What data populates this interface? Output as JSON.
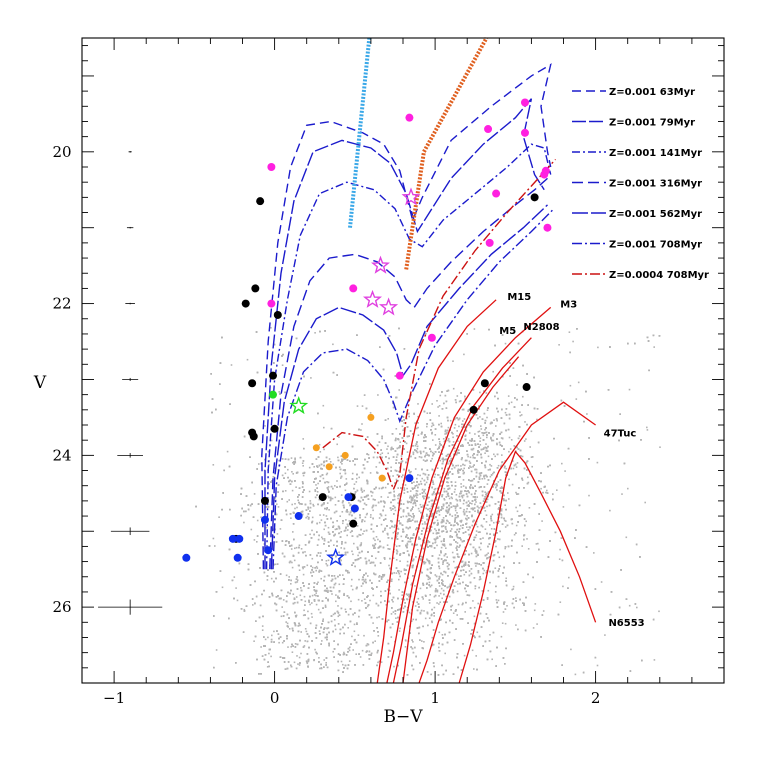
{
  "chart_data": {
    "type": "scatter",
    "xlabel": "B−V",
    "ylabel": "V",
    "xlim": [
      -1.2,
      2.8
    ],
    "ylim": [
      27.0,
      18.5
    ],
    "xticks": [
      -1,
      0,
      1,
      2
    ],
    "xtick_labels": [
      "−1",
      "0",
      "1",
      "2"
    ],
    "yticks": [
      20,
      22,
      24,
      26
    ],
    "ytick_labels": [
      "20",
      "22",
      "24",
      "26"
    ],
    "background_field": {
      "color": "#b4b4b4",
      "description_points": 9000
    },
    "colors": {
      "isochrone_blue": "#1b1bcc",
      "isochrone_red": "#cc1111",
      "cluster_red": "#e01010",
      "magenta": "#ff20e0",
      "black": "#000000",
      "blue": "#1030ee",
      "green": "#22dd22",
      "orange": "#f5a020",
      "light_blue": "#3aa8e8",
      "dark_orange": "#e06020",
      "star_magenta": "#e040e0"
    },
    "legend": [
      {
        "label": "Z=0.001 63Myr",
        "color": "#1b1bcc",
        "dash": "9,5"
      },
      {
        "label": "Z=0.001 79Myr",
        "color": "#1b1bcc",
        "dash": "14,3"
      },
      {
        "label": "Z=0.001 141Myr",
        "color": "#1b1bcc",
        "dash": "8,3,2,3"
      },
      {
        "label": "Z=0.001 316Myr",
        "color": "#1b1bcc",
        "dash": "11,5"
      },
      {
        "label": "Z=0.001 562Myr",
        "color": "#1b1bcc",
        "dash": "16,3"
      },
      {
        "label": "Z=0.001 708Myr",
        "color": "#1b1bcc",
        "dash": "10,3,2,3"
      },
      {
        "label": "Z=0.0004 708Myr",
        "color": "#cc1111",
        "dash": "10,3,2,3"
      }
    ],
    "cluster_labels": [
      {
        "name": "M15",
        "x": 1.45,
        "y": 21.95
      },
      {
        "name": "M3",
        "x": 1.78,
        "y": 22.05
      },
      {
        "name": "N2808",
        "x": 1.55,
        "y": 22.35
      },
      {
        "name": "M5",
        "x": 1.4,
        "y": 22.4
      },
      {
        "name": "47Tuc",
        "x": 2.05,
        "y": 23.75
      },
      {
        "name": "N6553",
        "x": 2.08,
        "y": 26.25
      }
    ],
    "clusters": [
      {
        "name": "M15",
        "x": [
          1.38,
          1.2,
          1.02,
          0.88,
          0.78,
          0.72,
          0.68,
          0.64
        ],
        "y": [
          21.95,
          22.3,
          22.85,
          23.6,
          24.6,
          25.6,
          26.4,
          27.0
        ]
      },
      {
        "name": "M3",
        "x": [
          1.72,
          1.5,
          1.3,
          1.12,
          0.98,
          0.88,
          0.8,
          0.74,
          0.7
        ],
        "y": [
          22.05,
          22.45,
          22.9,
          23.5,
          24.3,
          25.1,
          25.9,
          26.6,
          27.0
        ]
      },
      {
        "name": "N2808",
        "x": [
          1.6,
          1.42,
          1.24,
          1.08,
          0.96,
          0.86,
          0.79,
          0.74
        ],
        "y": [
          22.45,
          22.85,
          23.35,
          24.05,
          24.85,
          25.7,
          26.5,
          27.0
        ]
      },
      {
        "name": "M5",
        "x": [
          1.52,
          1.36,
          1.2,
          1.06,
          0.95,
          0.86,
          0.8
        ],
        "y": [
          22.7,
          23.1,
          23.6,
          24.3,
          25.1,
          26.0,
          27.0
        ]
      },
      {
        "name": "47Tuc",
        "x": [
          2.0,
          1.8,
          1.6,
          1.4,
          1.25,
          1.12,
          1.02,
          0.95,
          0.9
        ],
        "y": [
          23.6,
          23.3,
          23.6,
          24.2,
          24.9,
          25.6,
          26.2,
          26.7,
          27.0
        ]
      },
      {
        "name": "N6553",
        "x": [
          2.0,
          1.9,
          1.78,
          1.66,
          1.56,
          1.5,
          1.44,
          1.38,
          1.3,
          1.22,
          1.15
        ],
        "y": [
          26.2,
          25.6,
          25.0,
          24.5,
          24.1,
          23.95,
          24.3,
          25.0,
          25.8,
          26.5,
          27.0
        ]
      }
    ],
    "error_bars": [
      {
        "v": 20.0,
        "bv_err": 0.01,
        "v_err": 0.01
      },
      {
        "v": 21.0,
        "bv_err": 0.02,
        "v_err": 0.01
      },
      {
        "v": 22.0,
        "bv_err": 0.03,
        "v_err": 0.01
      },
      {
        "v": 23.0,
        "bv_err": 0.05,
        "v_err": 0.02
      },
      {
        "v": 24.0,
        "bv_err": 0.08,
        "v_err": 0.03
      },
      {
        "v": 25.0,
        "bv_err": 0.12,
        "v_err": 0.05
      },
      {
        "v": 26.0,
        "bv_err": 0.2,
        "v_err": 0.1
      }
    ],
    "guide_lines": [
      {
        "name": "light-blue-dotted-line",
        "color": "#3aa8e8",
        "x": [
          0.47,
          0.59
        ],
        "y": [
          21.0,
          18.5
        ]
      },
      {
        "name": "orange-dotted-line",
        "color": "#e06020",
        "x": [
          0.82,
          0.93,
          1.32
        ],
        "y": [
          21.55,
          20.0,
          18.5
        ]
      }
    ],
    "points_magenta": {
      "x": [
        0.84,
        1.33,
        1.56,
        1.56,
        1.69,
        1.68,
        1.7,
        1.38,
        1.34,
        0.49,
        0.98,
        0.78,
        -0.02,
        -0.02
      ],
      "y": [
        19.55,
        19.7,
        19.35,
        19.75,
        20.25,
        20.3,
        21.0,
        20.55,
        21.2,
        21.8,
        22.45,
        22.95,
        20.2,
        22.0
      ]
    },
    "points_black": {
      "x": [
        -0.09,
        -0.12,
        -0.18,
        0.02,
        -0.14,
        -0.01,
        -0.14,
        0.0,
        -0.13,
        -0.06,
        0.3,
        0.48,
        0.49,
        1.62,
        1.57,
        1.31,
        1.24,
        -0.24
      ],
      "y": [
        20.65,
        21.8,
        22.0,
        22.15,
        23.05,
        22.95,
        23.7,
        23.65,
        23.75,
        24.6,
        24.55,
        24.55,
        24.9,
        20.6,
        23.1,
        23.05,
        23.4,
        25.1
      ]
    },
    "points_blue": {
      "x": [
        -0.55,
        -0.23,
        -0.22,
        -0.26,
        -0.04,
        -0.06,
        0.15,
        0.46,
        0.5,
        0.84
      ],
      "y": [
        25.35,
        25.35,
        25.1,
        25.1,
        25.25,
        24.85,
        24.8,
        24.55,
        24.7,
        24.3
      ]
    },
    "points_green": {
      "x": [
        -0.01
      ],
      "y": [
        23.2
      ]
    },
    "points_orange": {
      "x": [
        0.26,
        0.34,
        0.44,
        0.6,
        0.67
      ],
      "y": [
        23.9,
        24.15,
        24.0,
        23.5,
        24.3
      ]
    },
    "stars_magenta": {
      "x": [
        0.85,
        0.66,
        0.61,
        0.71
      ],
      "y": [
        20.6,
        21.5,
        21.95,
        22.05
      ]
    },
    "stars_green": {
      "x": [
        0.15
      ],
      "y": [
        23.35
      ]
    },
    "stars_blue": {
      "x": [
        0.38
      ],
      "y": [
        25.35
      ]
    },
    "isochrones": [
      {
        "name": "63Myr",
        "color": "#1b1bcc",
        "dash": "9,5",
        "x": [
          -0.07,
          -0.08,
          -0.04,
          0.02,
          0.1,
          0.2,
          0.35,
          0.55,
          0.68,
          0.78,
          0.86,
          0.92,
          1.1,
          1.35,
          1.6,
          1.72,
          1.66,
          1.7,
          1.72
        ],
        "y": [
          25.5,
          24.0,
          22.5,
          21.2,
          20.2,
          19.65,
          19.6,
          19.75,
          19.9,
          20.25,
          20.9,
          20.6,
          19.85,
          19.4,
          19.0,
          18.85,
          19.4,
          20.0,
          20.2
        ]
      },
      {
        "name": "79Myr",
        "color": "#1b1bcc",
        "dash": "14,3",
        "x": [
          -0.06,
          -0.06,
          -0.02,
          0.04,
          0.12,
          0.24,
          0.42,
          0.6,
          0.72,
          0.82,
          0.89,
          0.95,
          1.1,
          1.3,
          1.5,
          1.6,
          1.55,
          1.62,
          1.68
        ],
        "y": [
          25.5,
          24.2,
          22.8,
          21.6,
          20.65,
          20.0,
          19.85,
          19.95,
          20.15,
          20.55,
          21.05,
          20.85,
          20.35,
          19.9,
          19.55,
          19.3,
          19.8,
          20.3,
          20.5
        ]
      },
      {
        "name": "141Myr",
        "color": "#1b1bcc",
        "dash": "8,3,2,3",
        "x": [
          -0.05,
          -0.04,
          0.0,
          0.08,
          0.16,
          0.28,
          0.45,
          0.62,
          0.75,
          0.84,
          0.92,
          1.05,
          1.25,
          1.45,
          1.6,
          1.68,
          1.72
        ],
        "y": [
          25.5,
          24.2,
          23.0,
          21.95,
          21.1,
          20.55,
          20.4,
          20.5,
          20.75,
          21.15,
          21.25,
          20.9,
          20.55,
          20.2,
          19.9,
          19.95,
          20.3
        ]
      },
      {
        "name": "316Myr",
        "color": "#1b1bcc",
        "dash": "11,5",
        "x": [
          -0.03,
          -0.01,
          0.04,
          0.12,
          0.22,
          0.34,
          0.5,
          0.64,
          0.75,
          0.82,
          0.87,
          0.95,
          1.1,
          1.3,
          1.5,
          1.62,
          1.7
        ],
        "y": [
          25.5,
          24.3,
          23.2,
          22.3,
          21.7,
          21.4,
          21.35,
          21.45,
          21.65,
          21.95,
          22.05,
          21.8,
          21.45,
          21.05,
          20.7,
          20.5,
          20.35
        ]
      },
      {
        "name": "562Myr",
        "color": "#1b1bcc",
        "dash": "16,3",
        "x": [
          -0.02,
          0.0,
          0.06,
          0.15,
          0.26,
          0.4,
          0.55,
          0.68,
          0.76,
          0.8,
          0.85,
          0.95,
          1.15,
          1.35,
          1.55,
          1.7
        ],
        "y": [
          25.5,
          24.3,
          23.3,
          22.6,
          22.2,
          22.05,
          22.15,
          22.35,
          22.65,
          22.95,
          22.8,
          22.3,
          21.8,
          21.35,
          21.0,
          20.7
        ]
      },
      {
        "name": "708Myr",
        "color": "#1b1bcc",
        "dash": "10,3,2,3",
        "x": [
          -0.01,
          0.01,
          0.08,
          0.18,
          0.3,
          0.45,
          0.58,
          0.68,
          0.74,
          0.78,
          0.85,
          1.0,
          1.2,
          1.4,
          1.6,
          1.74
        ],
        "y": [
          25.5,
          24.4,
          23.5,
          22.9,
          22.65,
          22.6,
          22.75,
          23.0,
          23.3,
          23.55,
          23.2,
          22.55,
          21.95,
          21.45,
          21.05,
          20.75
        ]
      },
      {
        "name": "708Myr-red",
        "color": "#cc1111",
        "dash": "10,3,2,3",
        "x": [
          0.3,
          0.42,
          0.55,
          0.64,
          0.7,
          0.74,
          0.78,
          0.82,
          0.9,
          1.05,
          1.25,
          1.45,
          1.6,
          1.75
        ],
        "y": [
          23.9,
          23.7,
          23.75,
          23.95,
          24.2,
          24.45,
          24.25,
          23.5,
          22.6,
          21.9,
          21.3,
          20.8,
          20.45,
          20.1
        ]
      }
    ]
  }
}
